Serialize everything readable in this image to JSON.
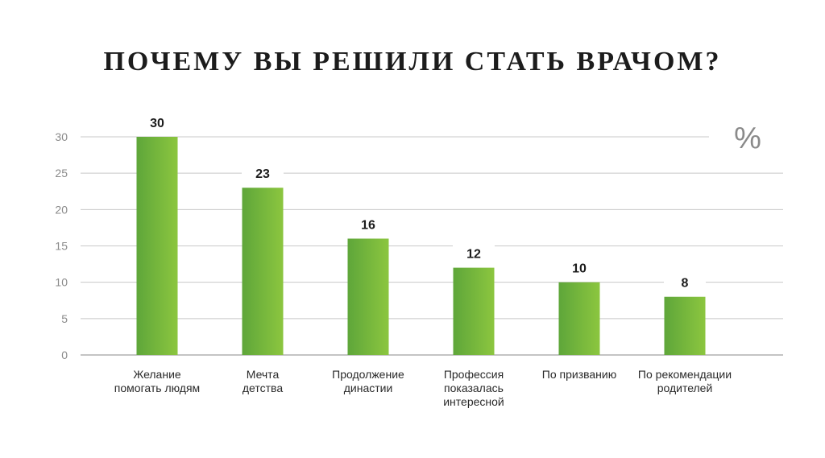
{
  "chart_data": {
    "type": "bar",
    "title": "ПОЧЕМУ ВЫ РЕШИЛИ СТАТЬ ВРАЧОМ?",
    "unit": "%",
    "categories": [
      [
        "Желание",
        "помогать людям"
      ],
      [
        "Мечта",
        "детства"
      ],
      [
        "Продолжение",
        "династии"
      ],
      [
        "Профессия",
        "показалась",
        "интересной"
      ],
      [
        "По призванию"
      ],
      [
        "По рекомендации",
        "родителей"
      ]
    ],
    "values": [
      30,
      23,
      16,
      12,
      10,
      8
    ],
    "value_labels": [
      "30",
      "23",
      "16",
      "12",
      "10",
      "8"
    ],
    "yticks": [
      "0",
      "5",
      "10",
      "15",
      "20",
      "25",
      "30"
    ],
    "ylim": [
      0,
      30
    ],
    "grid": true,
    "colors": {
      "bar_start": "#5ea63a",
      "bar_end": "#8cc63f",
      "grid": "#c8c8c8",
      "axis": "#b0b0b0"
    }
  }
}
